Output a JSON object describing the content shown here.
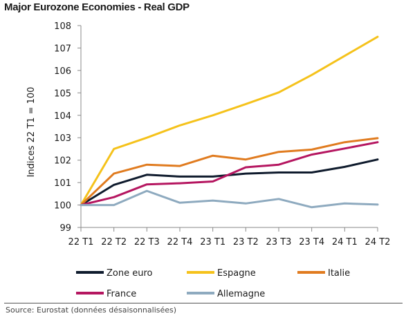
{
  "chart_data": {
    "type": "line",
    "title": "Major Eurozone Economies - Real GDP",
    "ylabel": "Indices 22 T1 = 100",
    "xlabel": "",
    "x": [
      "22 T1",
      "22 T2",
      "22 T3",
      "22 T4",
      "23 T1",
      "23 T2",
      "23 T3",
      "23 T4",
      "24 T1",
      "24 T2"
    ],
    "ylim": [
      99,
      108
    ],
    "yticks": [
      99,
      100,
      101,
      102,
      103,
      104,
      105,
      106,
      107,
      108
    ],
    "grid": false,
    "legend_position": "bottom",
    "series": [
      {
        "name": "Zone euro",
        "color": "#0f1b2d",
        "values": [
          100.0,
          100.9,
          101.35,
          101.27,
          101.27,
          101.4,
          101.45,
          101.45,
          101.7,
          102.03
        ]
      },
      {
        "name": "Espagne",
        "color": "#f5c21b",
        "values": [
          100.0,
          102.5,
          103.0,
          103.55,
          104.0,
          104.5,
          105.02,
          105.8,
          106.65,
          107.5
        ]
      },
      {
        "name": "Italie",
        "color": "#e07b1f",
        "values": [
          100.0,
          101.4,
          101.8,
          101.74,
          102.2,
          102.03,
          102.37,
          102.47,
          102.8,
          102.98
        ]
      },
      {
        "name": "France",
        "color": "#b51660",
        "values": [
          100.0,
          100.35,
          100.92,
          100.97,
          101.05,
          101.68,
          101.8,
          102.25,
          102.52,
          102.8
        ]
      },
      {
        "name": "Allemagne",
        "color": "#8eaabf",
        "values": [
          100.0,
          100.0,
          100.63,
          100.1,
          100.2,
          100.07,
          100.27,
          99.9,
          100.07,
          100.02
        ]
      }
    ]
  },
  "footer": {
    "source": "Source: Eurostat (données désaisonnalisées)"
  }
}
